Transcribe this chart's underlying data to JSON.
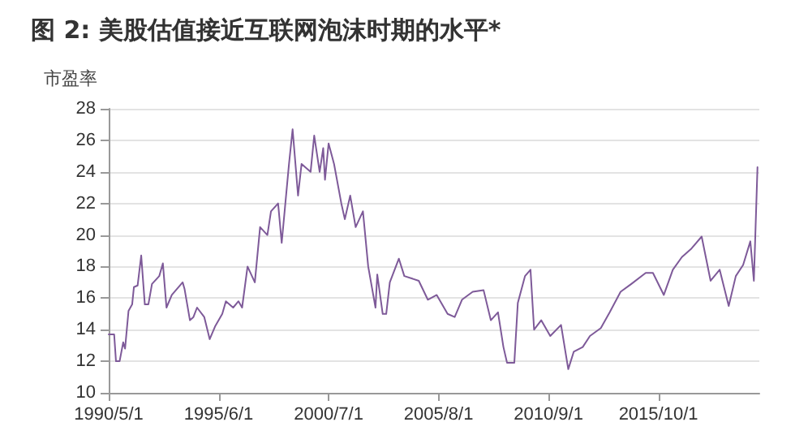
{
  "chart_data": {
    "type": "line",
    "title": "图 2: 美股估值接近互联网泡沫时期的水平*",
    "ylabel": "市盈率",
    "x": [
      "1990-05",
      "1990-08",
      "1990-09",
      "1990-11",
      "1991-01",
      "1991-02",
      "1991-04",
      "1991-06",
      "1991-07",
      "1991-09",
      "1991-11",
      "1992-01",
      "1992-03",
      "1992-05",
      "1992-09",
      "1992-11",
      "1993-01",
      "1993-04",
      "1993-10",
      "1993-11",
      "1994-02",
      "1994-04",
      "1994-06",
      "1994-10",
      "1995-01",
      "1995-04",
      "1995-08",
      "1995-10",
      "1996-02",
      "1996-05",
      "1996-07",
      "1996-10",
      "1997-02",
      "1997-05",
      "1997-09",
      "1997-11",
      "1998-03",
      "1998-05",
      "1998-09",
      "1998-11",
      "1999-02",
      "1999-04",
      "1999-09",
      "1999-11",
      "2000-02",
      "2000-04",
      "2000-05",
      "2000-07",
      "2000-10",
      "2001-02",
      "2001-04",
      "2001-07",
      "2001-10",
      "2002-02",
      "2002-05",
      "2002-09",
      "2002-10",
      "2003-01",
      "2003-03",
      "2003-05",
      "2003-10",
      "2004-01",
      "2004-09",
      "2005-02",
      "2005-07",
      "2006-01",
      "2006-05",
      "2006-09",
      "2007-03",
      "2007-09",
      "2008-01",
      "2008-05",
      "2008-08",
      "2008-10",
      "2009-02",
      "2009-04",
      "2009-08",
      "2009-11",
      "2010-01",
      "2010-05",
      "2010-10",
      "2011-04",
      "2011-08",
      "2011-11",
      "2012-04",
      "2012-08",
      "2013-02",
      "2013-07",
      "2014-01",
      "2014-07",
      "2015-03",
      "2015-07",
      "2016-01",
      "2016-06",
      "2016-11",
      "2017-04",
      "2017-10",
      "2018-03",
      "2018-08",
      "2019-01",
      "2019-05",
      "2019-09",
      "2020-01",
      "2020-03",
      "2020-05"
    ],
    "series": [
      {
        "color": "#7e5a99",
        "values": [
          13.7,
          13.7,
          12.0,
          12.0,
          13.2,
          12.8,
          15.2,
          15.6,
          16.7,
          16.8,
          18.7,
          15.6,
          15.6,
          16.9,
          17.4,
          18.2,
          15.4,
          16.2,
          17.0,
          16.6,
          14.6,
          14.8,
          15.4,
          14.8,
          13.4,
          14.2,
          15.0,
          15.8,
          15.4,
          15.8,
          15.4,
          18.0,
          17.0,
          20.5,
          20.0,
          21.5,
          22.0,
          19.5,
          24.5,
          26.7,
          22.5,
          24.5,
          24.0,
          26.3,
          24.0,
          25.5,
          23.5,
          25.8,
          24.5,
          22.0,
          21.0,
          22.5,
          20.5,
          21.5,
          18.0,
          15.4,
          17.5,
          15.0,
          15.0,
          17.0,
          18.5,
          17.4,
          17.1,
          15.9,
          16.2,
          15.0,
          14.8,
          15.9,
          16.4,
          16.5,
          14.6,
          15.1,
          12.9,
          11.9,
          11.9,
          15.7,
          17.4,
          17.8,
          14.0,
          14.6,
          13.6,
          14.3,
          11.5,
          12.6,
          12.9,
          13.6,
          14.1,
          15.1,
          16.4,
          16.9,
          17.6,
          17.6,
          16.2,
          17.8,
          18.6,
          19.1,
          19.9,
          17.1,
          17.8,
          15.5,
          17.4,
          18.1,
          19.6,
          17.1,
          24.3
        ]
      }
    ],
    "xlim": [
      "1990-05-01",
      "2020-06-01"
    ],
    "xticks": [
      {
        "value": "1990-05-01",
        "label": "1990/5/1"
      },
      {
        "value": "1995-06-01",
        "label": "1995/6/1"
      },
      {
        "value": "2000-07-01",
        "label": "2000/7/1"
      },
      {
        "value": "2005-08-01",
        "label": "2005/8/1"
      },
      {
        "value": "2010-09-01",
        "label": "2010/9/1"
      },
      {
        "value": "2015-10-01",
        "label": "2015/10/1"
      }
    ],
    "ylim": [
      10,
      28
    ],
    "yticks": [
      10,
      12,
      14,
      16,
      18,
      20,
      22,
      24,
      26,
      28
    ],
    "grid": "y",
    "marker": "none",
    "line_style": "solid"
  }
}
